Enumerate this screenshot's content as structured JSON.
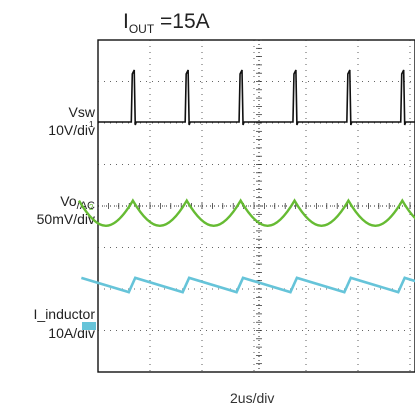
{
  "title": {
    "main": "I",
    "sub": "OUT",
    "rest": " =15A"
  },
  "channels": [
    {
      "name": "Vsw",
      "scale": "10V/div",
      "color": "#111111"
    },
    {
      "name_main": "Vo",
      "name_sub": "/AC",
      "scale": "50mV/div",
      "color": "#66bb33"
    },
    {
      "name": "I_inductor",
      "scale": "10A/div",
      "color": "#66c4d9"
    }
  ],
  "time_scale": "2us/div",
  "chart_data": {
    "type": "line",
    "title": "I_OUT =15A",
    "xlabel": "2us/div",
    "grid": true,
    "time_per_div_us": 2,
    "x_range_us": [
      -4,
      16
    ],
    "series": [
      {
        "name": "Vsw",
        "scale": "10V/div",
        "color": "#111111",
        "kind": "pulse",
        "period_us": 3.4,
        "first_edge_us": -1.9,
        "pulse_width_us": 0.25,
        "high_level_V": 17,
        "low_level_V": 0
      },
      {
        "name": "Vo/AC",
        "scale": "50mV/div",
        "color": "#66bb33",
        "kind": "ripple",
        "period_us": 3.4,
        "first_peak_us": -1.8,
        "peak_mV": 6,
        "trough_mV": -22
      },
      {
        "name": "I_inductor",
        "scale": "10A/div",
        "color": "#66c4d9",
        "kind": "sawtooth",
        "period_us": 3.4,
        "first_peak_us": -1.65,
        "peak_A": 20,
        "valley_A": 9
      }
    ]
  }
}
